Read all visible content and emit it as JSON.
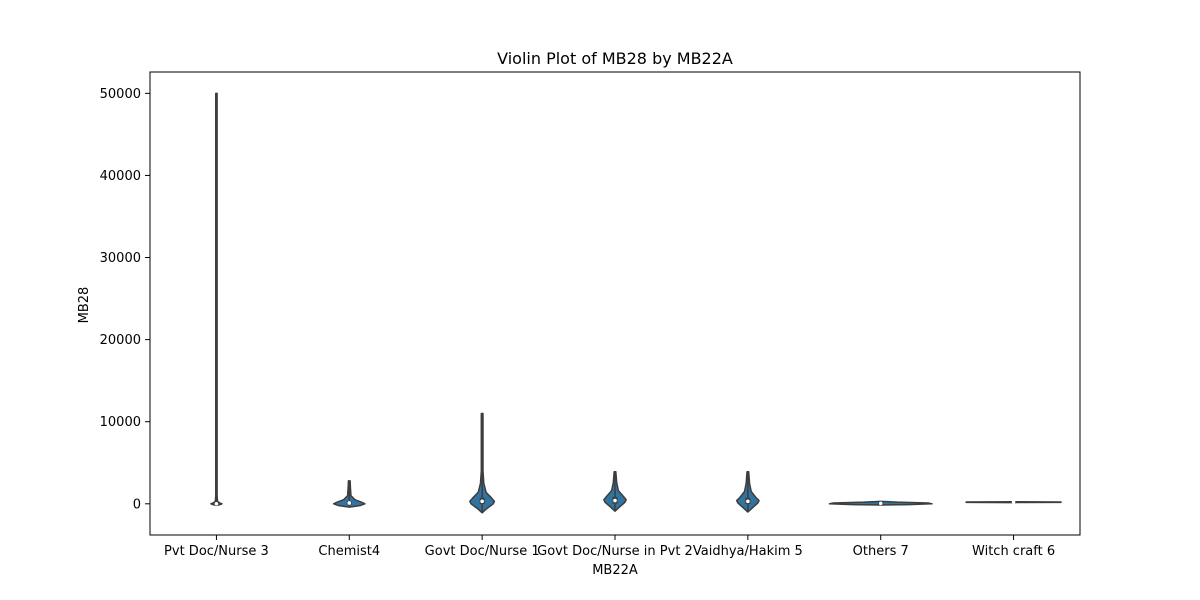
{
  "chart_data": {
    "type": "violin",
    "title": "Violin Plot of MB28 by MB22A",
    "xlabel": "MB22A",
    "ylabel": "MB28",
    "ylim": [
      -3800,
      52600
    ],
    "yticks": [
      0,
      10000,
      20000,
      30000,
      40000,
      50000
    ],
    "ytick_labels": [
      "0",
      "10000",
      "20000",
      "30000",
      "40000",
      "50000"
    ],
    "categories": [
      "Pvt Doc/Nurse 3",
      "Chemist4",
      "Govt Doc/Nurse 1",
      "Govt Doc/Nurse in Pvt 2",
      "Vaidhya/Hakim 5",
      "Others 7",
      "Witch craft 6"
    ],
    "violins": [
      {
        "category": "Pvt Doc/Nurse 3",
        "min": -100,
        "max": 50000,
        "q1": -20,
        "median": 0,
        "q3": 50,
        "profile": [
          [
            -200,
            0
          ],
          [
            -100,
            0.06
          ],
          [
            0,
            0.1
          ],
          [
            100,
            0.06
          ],
          [
            300,
            0.02
          ],
          [
            1000,
            0.012
          ],
          [
            50000,
            0.012
          ]
        ]
      },
      {
        "category": "Chemist4",
        "min": -300,
        "max": 2800,
        "q1": 30,
        "median": 100,
        "q3": 200,
        "profile": [
          [
            -400,
            0
          ],
          [
            -200,
            0.2
          ],
          [
            0,
            0.28
          ],
          [
            200,
            0.22
          ],
          [
            500,
            0.1
          ],
          [
            1000,
            0.03
          ],
          [
            2000,
            0.02
          ],
          [
            2800,
            0.015
          ]
        ]
      },
      {
        "category": "Govt Doc/Nurse 1",
        "min": -1100,
        "max": 11000,
        "q1": 100,
        "median": 300,
        "q3": 600,
        "profile": [
          [
            -1100,
            0
          ],
          [
            -600,
            0.08
          ],
          [
            0,
            0.2
          ],
          [
            300,
            0.22
          ],
          [
            700,
            0.17
          ],
          [
            1400,
            0.07
          ],
          [
            2500,
            0.03
          ],
          [
            4000,
            0.015
          ],
          [
            11000,
            0.015
          ]
        ]
      },
      {
        "category": "Govt Doc/Nurse in Pvt 2",
        "min": -900,
        "max": 3900,
        "q1": 150,
        "median": 400,
        "q3": 700,
        "profile": [
          [
            -900,
            0
          ],
          [
            -400,
            0.08
          ],
          [
            200,
            0.18
          ],
          [
            500,
            0.2
          ],
          [
            900,
            0.15
          ],
          [
            1600,
            0.06
          ],
          [
            2600,
            0.03
          ],
          [
            3900,
            0.015
          ]
        ]
      },
      {
        "category": "Vaidhya/Hakim 5",
        "min": -1000,
        "max": 3900,
        "q1": 100,
        "median": 300,
        "q3": 600,
        "profile": [
          [
            -1000,
            0
          ],
          [
            -500,
            0.08
          ],
          [
            100,
            0.18
          ],
          [
            400,
            0.2
          ],
          [
            800,
            0.14
          ],
          [
            1500,
            0.06
          ],
          [
            2500,
            0.03
          ],
          [
            3900,
            0.015
          ]
        ]
      },
      {
        "category": "Others 7",
        "min": -150,
        "max": 300,
        "q1": -20,
        "median": 50,
        "q3": 100,
        "profile": [
          [
            -150,
            0
          ],
          [
            -100,
            0.5
          ],
          [
            0,
            0.92
          ],
          [
            100,
            0.85
          ],
          [
            200,
            0.3
          ],
          [
            300,
            0
          ]
        ]
      },
      {
        "category": "Witch craft 6",
        "min": 150,
        "max": 250,
        "q1": 200,
        "median": 200,
        "q3": 200,
        "profile": [
          [
            150,
            0
          ],
          [
            180,
            0.85
          ],
          [
            220,
            0.85
          ],
          [
            250,
            0
          ]
        ]
      }
    ],
    "violin_color": "#3274a1",
    "edge_color": "#3d3d3d",
    "grid": false,
    "legend": "none"
  }
}
